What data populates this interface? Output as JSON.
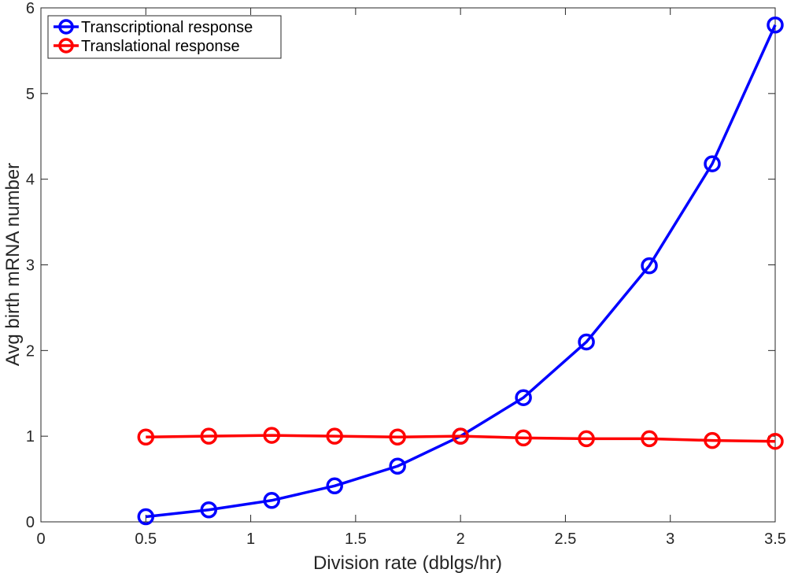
{
  "chart_data": {
    "type": "line",
    "title": "",
    "xlabel": "Division rate (dblgs/hr)",
    "ylabel": "Avg birth mRNA number",
    "xlim": [
      0,
      3.5
    ],
    "ylim": [
      0,
      6
    ],
    "xticks": [
      "0",
      "0.5",
      "1",
      "1.5",
      "2",
      "2.5",
      "3",
      "3.5"
    ],
    "yticks": [
      "0",
      "1",
      "2",
      "3",
      "4",
      "5",
      "6"
    ],
    "grid": false,
    "legend_placement": "top-left",
    "x": [
      0.5,
      0.8,
      1.1,
      1.4,
      1.7,
      2.0,
      2.3,
      2.6,
      2.9,
      3.2,
      3.5
    ],
    "series": [
      {
        "name": "Transcriptional response",
        "color": "#0000ff",
        "marker": "circle",
        "values": [
          0.06,
          0.14,
          0.25,
          0.42,
          0.65,
          1.0,
          1.45,
          2.1,
          2.99,
          4.18,
          5.8
        ]
      },
      {
        "name": "Translational response",
        "color": "#ff0000",
        "marker": "circle",
        "values": [
          0.99,
          1.0,
          1.01,
          1.0,
          0.99,
          1.0,
          0.98,
          0.97,
          0.97,
          0.95,
          0.94
        ]
      }
    ]
  }
}
